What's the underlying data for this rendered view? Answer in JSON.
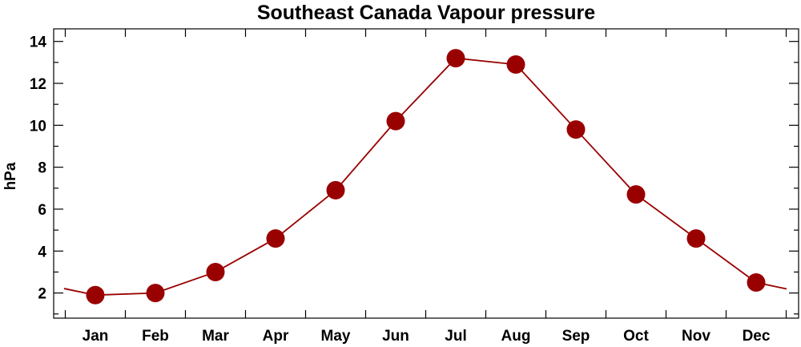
{
  "chart_data": {
    "type": "line",
    "title": "Southeast Canada Vapour pressure",
    "xlabel": "",
    "ylabel": "hPa",
    "categories": [
      "Jan",
      "Feb",
      "Mar",
      "Apr",
      "May",
      "Jun",
      "Jul",
      "Aug",
      "Sep",
      "Oct",
      "Nov",
      "Dec"
    ],
    "values": [
      1.9,
      2.0,
      3.0,
      4.6,
      6.9,
      10.2,
      13.2,
      12.9,
      9.8,
      6.7,
      4.6,
      2.5
    ],
    "ylim": [
      0.8,
      14.6
    ],
    "yticks": [
      2,
      4,
      6,
      8,
      10,
      12,
      14
    ],
    "grid": false,
    "legend": "none",
    "color": "#990000",
    "cyclic_wrap": true
  }
}
